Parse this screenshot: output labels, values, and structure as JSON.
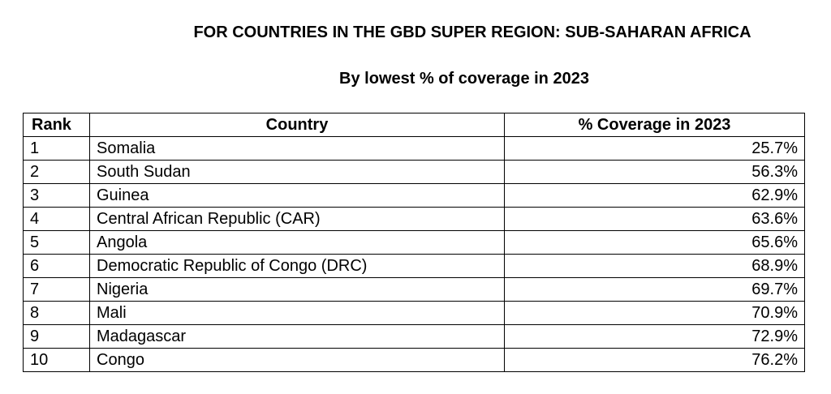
{
  "header": {
    "title": "FOR COUNTRIES IN THE GBD SUPER REGION: SUB-SAHARAN AFRICA",
    "subtitle": "By lowest % of coverage in 2023"
  },
  "table": {
    "columns": [
      "Rank",
      "Country",
      "% Coverage in 2023"
    ],
    "rows": [
      {
        "rank": "1",
        "country": "Somalia",
        "coverage": "25.7%"
      },
      {
        "rank": "2",
        "country": "South Sudan",
        "coverage": "56.3%"
      },
      {
        "rank": "3",
        "country": "Guinea",
        "coverage": "62.9%"
      },
      {
        "rank": "4",
        "country": "Central African Republic (CAR)",
        "coverage": "63.6%"
      },
      {
        "rank": "5",
        "country": "Angola",
        "coverage": "65.6%"
      },
      {
        "rank": "6",
        "country": "Democratic Republic of Congo (DRC)",
        "coverage": "68.9%"
      },
      {
        "rank": "7",
        "country": "Nigeria",
        "coverage": "69.7%"
      },
      {
        "rank": "8",
        "country": "Mali",
        "coverage": "70.9%"
      },
      {
        "rank": "9",
        "country": "Madagascar",
        "coverage": "72.9%"
      },
      {
        "rank": "10",
        "country": "Congo",
        "coverage": "76.2%"
      }
    ]
  }
}
